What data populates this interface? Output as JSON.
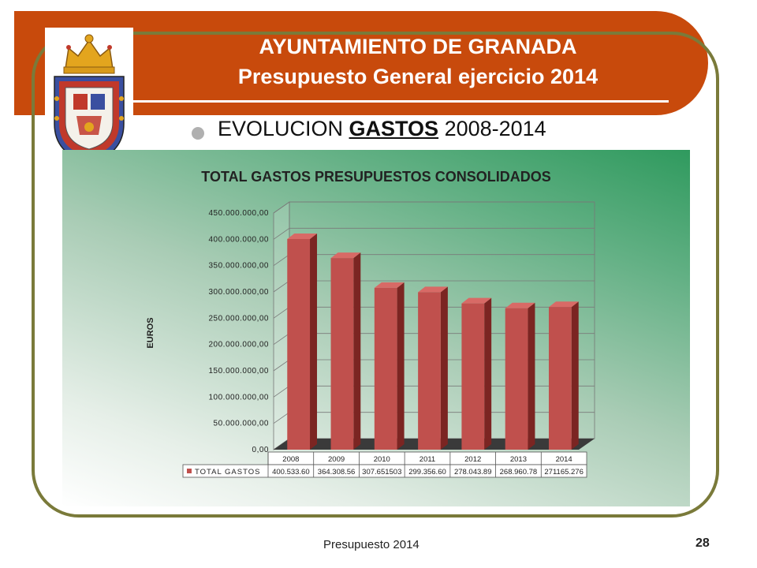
{
  "header": {
    "title_line1": "AYUNTAMIENTO DE GRANADA",
    "title_line2": "Presupuesto  General ejercicio 2014",
    "banner_color": "#c84a0c"
  },
  "subtitle": {
    "prefix": "EVOLUCION ",
    "emphasis": "GASTOS",
    "suffix": " 2008-2014"
  },
  "crest": {
    "icon": "coat-of-arms-icon"
  },
  "footer": {
    "text": "Presupuesto 2014",
    "page_number": "28"
  },
  "chart_data": {
    "type": "bar",
    "title": "TOTAL GASTOS PRESUPUESTOS CONSOLIDADOS",
    "ylabel": "EUROS",
    "xlabel": "",
    "categories": [
      "2008",
      "2009",
      "2010",
      "2011",
      "2012",
      "2013",
      "2014"
    ],
    "series": [
      {
        "name": "TOTAL GASTOS",
        "values": [
          400533600,
          364308560,
          307651503,
          299356601,
          278043890,
          268960780,
          271165276
        ],
        "table_labels": [
          "400.533.60",
          "364.308.56",
          "307.651503",
          "299.356.60",
          "278.043.89",
          "268.960.78",
          "271165.276"
        ],
        "color": "#c0504d"
      }
    ],
    "ylim": [
      0,
      450000000
    ],
    "yticks": [
      "0,00",
      "50.000.000,00",
      "100.000.000,00",
      "150.000.000,00",
      "200.000.000,00",
      "250.000.000,00",
      "300.000.000,00",
      "350.000.000,00",
      "400.000.000,00",
      "450.000.000,00"
    ],
    "grid": true,
    "legend": "data-table-bottom"
  }
}
